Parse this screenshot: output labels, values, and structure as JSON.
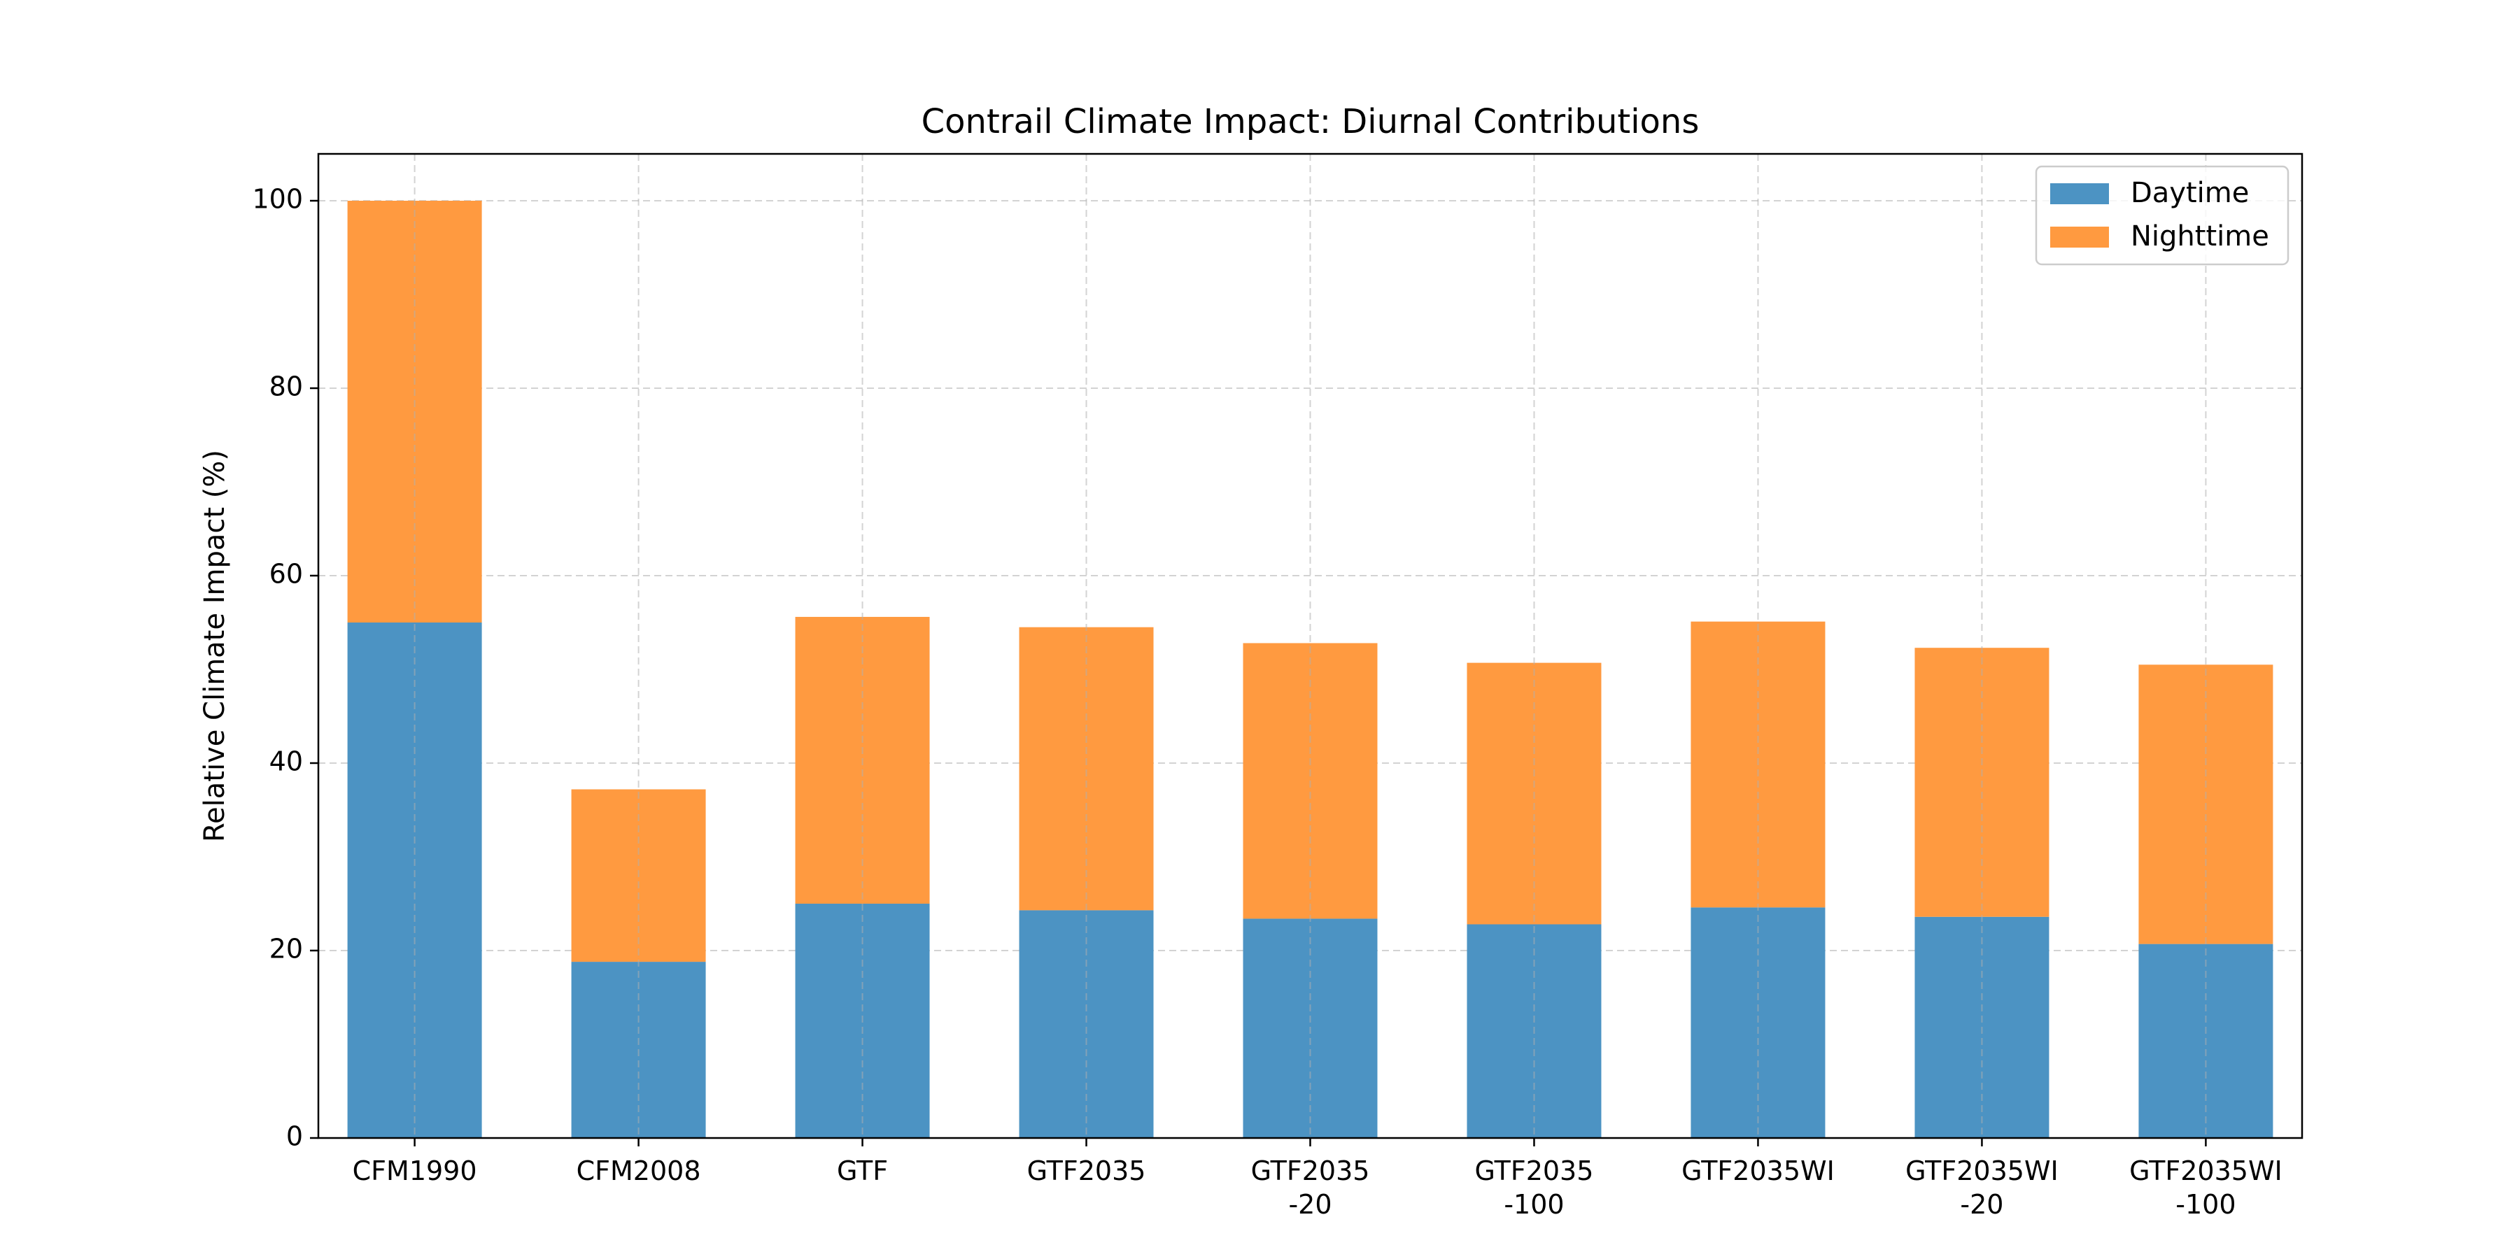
{
  "chart_data": {
    "type": "bar",
    "stacked": true,
    "title": "Contrail Climate Impact: Diurnal Contributions",
    "xlabel": "",
    "ylabel": "Relative Climate Impact (%)",
    "ylim": [
      0,
      105
    ],
    "yticks": [
      "0",
      "20",
      "40",
      "60",
      "80",
      "100"
    ],
    "grid": true,
    "legend_position": "top-right",
    "categories": [
      [
        "CFM1990"
      ],
      [
        "CFM2008"
      ],
      [
        "GTF"
      ],
      [
        "GTF2035"
      ],
      [
        "GTF2035",
        "-20"
      ],
      [
        "GTF2035",
        "-100"
      ],
      [
        "GTF2035WI"
      ],
      [
        "GTF2035WI",
        "-20"
      ],
      [
        "GTF2035WI",
        "-100"
      ]
    ],
    "series": [
      {
        "name": "Daytime",
        "color": "#4c93c3",
        "values": [
          55.0,
          18.8,
          25.0,
          24.3,
          23.4,
          22.8,
          24.6,
          23.6,
          20.7
        ]
      },
      {
        "name": "Nighttime",
        "color": "#ff9a40",
        "values": [
          45.0,
          18.4,
          30.6,
          30.2,
          29.4,
          27.9,
          30.5,
          28.7,
          29.8
        ]
      }
    ]
  }
}
